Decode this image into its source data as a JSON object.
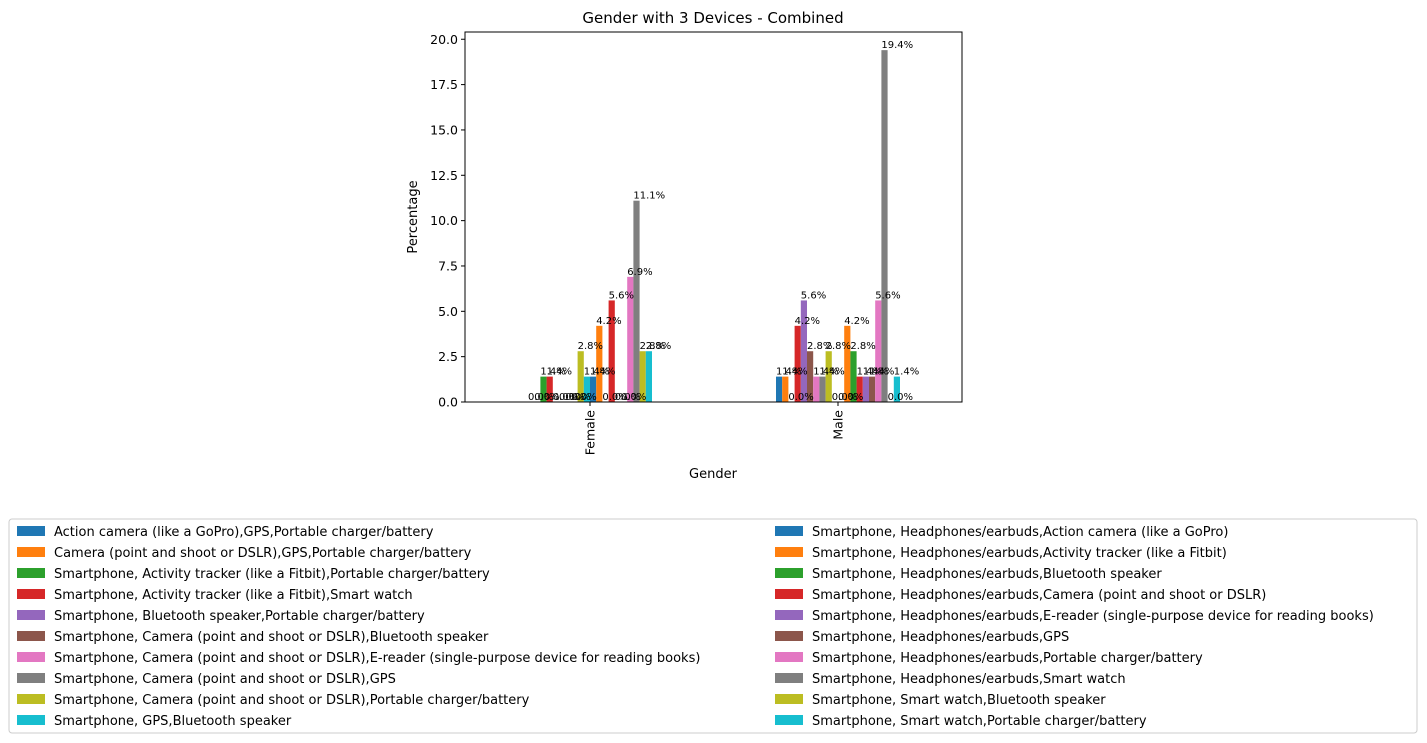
{
  "chart_data": {
    "type": "bar",
    "title": "Gender with 3 Devices - Combined",
    "xlabel": "Gender",
    "ylabel": "Percentage",
    "categories": [
      "Female",
      "Male"
    ],
    "ylim": [
      0,
      20.4
    ],
    "yticks": [
      "0.0",
      "2.5",
      "5.0",
      "7.5",
      "10.0",
      "12.5",
      "15.0",
      "17.5",
      "20.0"
    ],
    "grid": false,
    "legend_position": "bottom",
    "series": [
      {
        "name": " Action camera (like a GoPro),GPS,Portable charger/battery",
        "color": "#1f77b4",
        "values": [
          0.0,
          1.4
        ]
      },
      {
        "name": " Camera (point and shoot or DSLR),GPS,Portable charger/battery",
        "color": "#ff7f0e",
        "values": [
          0.0,
          1.4
        ]
      },
      {
        "name": "Smartphone, Activity tracker (like a Fitbit),Portable charger/battery",
        "color": "#2ca02c",
        "values": [
          1.4,
          0.0
        ]
      },
      {
        "name": "Smartphone, Activity tracker (like a Fitbit),Smart watch",
        "color": "#d62728",
        "values": [
          1.4,
          4.2
        ]
      },
      {
        "name": "Smartphone, Bluetooth speaker,Portable charger/battery",
        "color": "#9467bd",
        "values": [
          0.0,
          5.6
        ]
      },
      {
        "name": "Smartphone, Camera (point and shoot or DSLR),Bluetooth speaker",
        "color": "#8c564b",
        "values": [
          0.0,
          2.8
        ]
      },
      {
        "name": "Smartphone, Camera (point and shoot or DSLR),E-reader (single-purpose device for reading books)",
        "color": "#e377c2",
        "values": [
          0.0,
          1.4
        ]
      },
      {
        "name": "Smartphone, Camera (point and shoot or DSLR),GPS",
        "color": "#7f7f7f",
        "values": [
          0.0,
          1.4
        ]
      },
      {
        "name": "Smartphone, Camera (point and shoot or DSLR),Portable charger/battery",
        "color": "#bcbd22",
        "values": [
          2.8,
          2.8
        ]
      },
      {
        "name": "Smartphone, GPS,Bluetooth speaker",
        "color": "#17becf",
        "values": [
          1.4,
          0.0
        ]
      },
      {
        "name": "Smartphone, Headphones/earbuds,Action camera (like a GoPro)",
        "color": "#1f77b4",
        "values": [
          1.4,
          0.0
        ]
      },
      {
        "name": "Smartphone, Headphones/earbuds,Activity tracker (like a Fitbit)",
        "color": "#ff7f0e",
        "values": [
          4.2,
          4.2
        ]
      },
      {
        "name": "Smartphone, Headphones/earbuds,Bluetooth speaker",
        "color": "#2ca02c",
        "values": [
          0.0,
          2.8
        ]
      },
      {
        "name": "Smartphone, Headphones/earbuds,Camera (point and shoot or DSLR)",
        "color": "#d62728",
        "values": [
          5.6,
          1.4
        ]
      },
      {
        "name": "Smartphone, Headphones/earbuds,E-reader (single-purpose device for reading books)",
        "color": "#9467bd",
        "values": [
          0.0,
          1.4
        ]
      },
      {
        "name": "Smartphone, Headphones/earbuds,GPS",
        "color": "#8c564b",
        "values": [
          0.0,
          1.4
        ]
      },
      {
        "name": "Smartphone, Headphones/earbuds,Portable charger/battery",
        "color": "#e377c2",
        "values": [
          6.9,
          5.6
        ]
      },
      {
        "name": "Smartphone, Headphones/earbuds,Smart watch",
        "color": "#7f7f7f",
        "values": [
          11.1,
          19.4
        ]
      },
      {
        "name": "Smartphone, Smart watch,Bluetooth speaker",
        "color": "#bcbd22",
        "values": [
          2.8,
          0.0
        ]
      },
      {
        "name": "Smartphone, Smart watch,Portable charger/battery",
        "color": "#17becf",
        "values": [
          2.8,
          1.4
        ]
      }
    ],
    "bar_labels": [
      [
        "0.0%",
        "1.4%"
      ],
      [
        "0.0%",
        "1.4%"
      ],
      [
        "1.4%",
        "0.0%"
      ],
      [
        "1.4%",
        "4.2%"
      ],
      [
        "0.0%",
        "5.6%"
      ],
      [
        "0.0%",
        "2.8%"
      ],
      [
        "0.0%",
        "1.4%"
      ],
      [
        "0.0%",
        "1.4%"
      ],
      [
        "2.8%",
        "2.8%"
      ],
      [
        "1.4%",
        "0.0%"
      ],
      [
        "1.4%",
        "0.0%"
      ],
      [
        "4.2%",
        "4.2%"
      ],
      [
        "0.0%",
        "2.8%"
      ],
      [
        "5.6%",
        "1.4%"
      ],
      [
        "0.0%",
        "1.4%"
      ],
      [
        "0.0%",
        "1.4%"
      ],
      [
        "6.9%",
        "5.6%"
      ],
      [
        "11.1%",
        "19.4%"
      ],
      [
        "2.8%",
        "0.0%"
      ],
      [
        "2.8%",
        "1.4%"
      ]
    ]
  }
}
